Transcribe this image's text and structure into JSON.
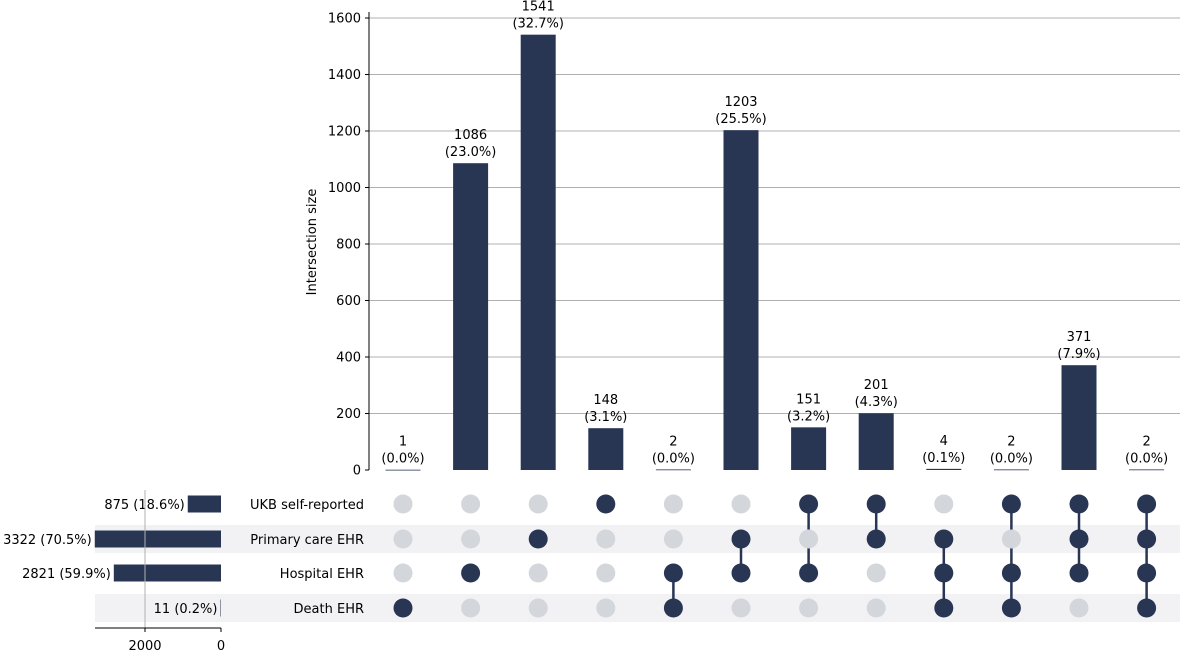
{
  "chart_data": {
    "type": "upset",
    "ylabel": "Intersection size",
    "yticks": [
      0,
      200,
      400,
      600,
      800,
      1000,
      1200,
      1400,
      1600
    ],
    "ylim": [
      0,
      1620
    ],
    "grid": true,
    "colors": {
      "bar": "#283654",
      "dot_inactive": "#d3d6da",
      "stripe": "#f2f2f4",
      "grid": "#b0b0b0"
    },
    "sets": [
      {
        "name": "UKB self-reported",
        "size_label": "875 (18.6%)",
        "size": 875
      },
      {
        "name": "Primary care EHR",
        "size_label": "3322 (70.5%)",
        "size": 3322
      },
      {
        "name": "Hospital EHR",
        "size_label": "2821 (59.9%)",
        "size": 2821
      },
      {
        "name": "Death EHR",
        "size_label": "11 (0.2%)",
        "size": 11
      }
    ],
    "set_size_axis": {
      "ticks": [
        2000,
        0
      ]
    },
    "intersections": [
      {
        "value": 1,
        "label": "1",
        "pct": "(0.0%)",
        "members": [
          3
        ]
      },
      {
        "value": 1086,
        "label": "1086",
        "pct": "(23.0%)",
        "members": [
          2
        ]
      },
      {
        "value": 1541,
        "label": "1541",
        "pct": "(32.7%)",
        "members": [
          1
        ]
      },
      {
        "value": 148,
        "label": "148",
        "pct": "(3.1%)",
        "members": [
          0
        ]
      },
      {
        "value": 2,
        "label": "2",
        "pct": "(0.0%)",
        "members": [
          2,
          3
        ]
      },
      {
        "value": 1203,
        "label": "1203",
        "pct": "(25.5%)",
        "members": [
          1,
          2
        ]
      },
      {
        "value": 151,
        "label": "151",
        "pct": "(3.2%)",
        "members": [
          0,
          2
        ]
      },
      {
        "value": 201,
        "label": "201",
        "pct": "(4.3%)",
        "members": [
          0,
          1
        ]
      },
      {
        "value": 4,
        "label": "4",
        "pct": "(0.1%)",
        "members": [
          1,
          2,
          3
        ]
      },
      {
        "value": 2,
        "label": "2",
        "pct": "(0.0%)",
        "members": [
          0,
          2,
          3
        ]
      },
      {
        "value": 371,
        "label": "371",
        "pct": "(7.9%)",
        "members": [
          0,
          1,
          2
        ]
      },
      {
        "value": 2,
        "label": "2",
        "pct": "(0.0%)",
        "members": [
          0,
          1,
          2,
          3
        ]
      }
    ]
  }
}
